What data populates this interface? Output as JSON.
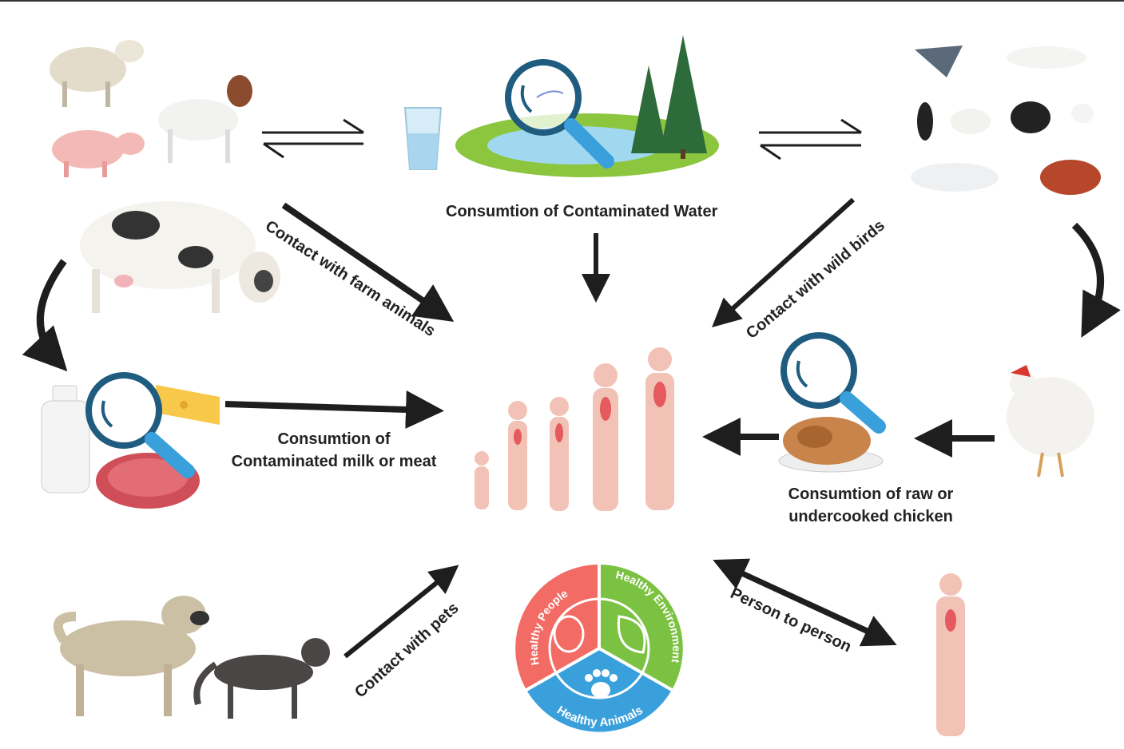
{
  "labels": {
    "water": "Consumtion of Contaminated Water",
    "farm": "Contact with farm animals",
    "wild_birds": "Contact with wild birds",
    "milk_line1": "Consumtion of",
    "milk_line2": "Contaminated milk or meat",
    "chicken_line1": "Consumtion of raw or",
    "chicken_line2": "undercooked chicken",
    "pets": "Contact with pets",
    "person": "Person to person"
  },
  "one_health": {
    "people": "Healthy People",
    "environment": "Healthy Environment",
    "animals": "Healthy Animals"
  },
  "icons": [
    "sheep-icon",
    "pig-icon",
    "goat-icon",
    "cow-icon",
    "water-glass-icon",
    "lake-icon",
    "magnifier-icon",
    "tree-icon",
    "wild-birds-icon",
    "milk-bottle-icon",
    "cheese-icon",
    "meat-icon",
    "humans-icon",
    "roast-chicken-icon",
    "hen-icon",
    "dog-icon",
    "cat-icon",
    "hand-icon",
    "leaf-icon",
    "paw-icon"
  ],
  "colors": {
    "arrow": "#1e1e1e",
    "people": "#f26b64",
    "environment": "#7cc242",
    "animals": "#3aa0dc",
    "human_body": "#f2c2b6",
    "lens": "#1f5c80"
  }
}
